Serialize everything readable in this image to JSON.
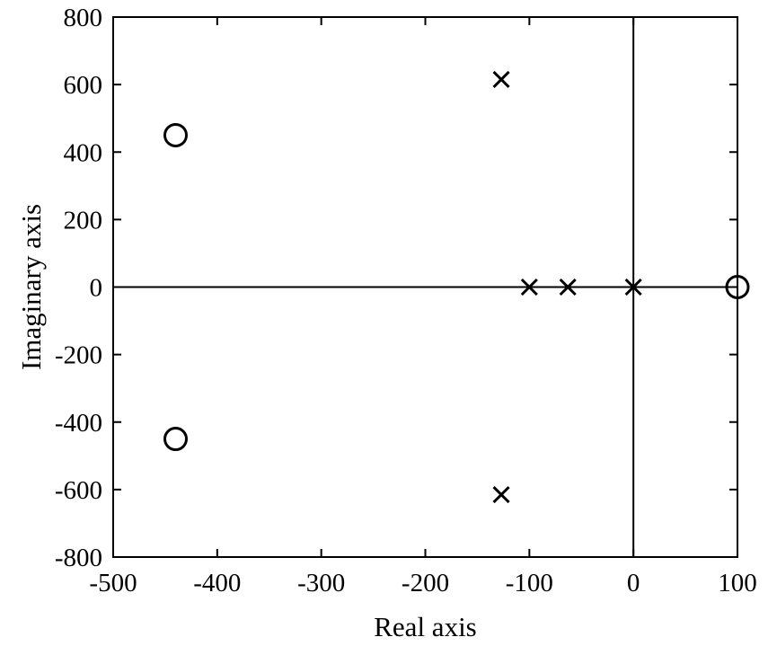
{
  "chart_data": {
    "type": "scatter",
    "xlabel": "Real axis",
    "ylabel": "Imaginary axis",
    "xlim": [
      -500,
      100
    ],
    "ylim": [
      -800,
      800
    ],
    "xticks": [
      -500,
      -400,
      -300,
      -200,
      -100,
      0,
      100
    ],
    "yticks": [
      800,
      600,
      400,
      200,
      0,
      -200,
      -400,
      -600,
      -800
    ],
    "xtick_labels": [
      "-500",
      "-400",
      "-300",
      "-200",
      "-100",
      "0",
      "100"
    ],
    "ytick_labels": [
      "800",
      "600",
      "400",
      "200",
      "0",
      "-200",
      "-400",
      "-600",
      "-800"
    ],
    "grid": false,
    "reference_lines": {
      "x": 0,
      "y": 0
    },
    "series": [
      {
        "marker": "x",
        "points": [
          {
            "x": -127,
            "y": 615
          },
          {
            "x": -127,
            "y": -615
          },
          {
            "x": -100,
            "y": 0
          },
          {
            "x": -63,
            "y": 0
          },
          {
            "x": 0,
            "y": 0
          }
        ]
      },
      {
        "marker": "o",
        "points": [
          {
            "x": -440,
            "y": 450
          },
          {
            "x": -440,
            "y": -450
          },
          {
            "x": 100,
            "y": 0
          }
        ]
      }
    ],
    "color": "#000000"
  }
}
